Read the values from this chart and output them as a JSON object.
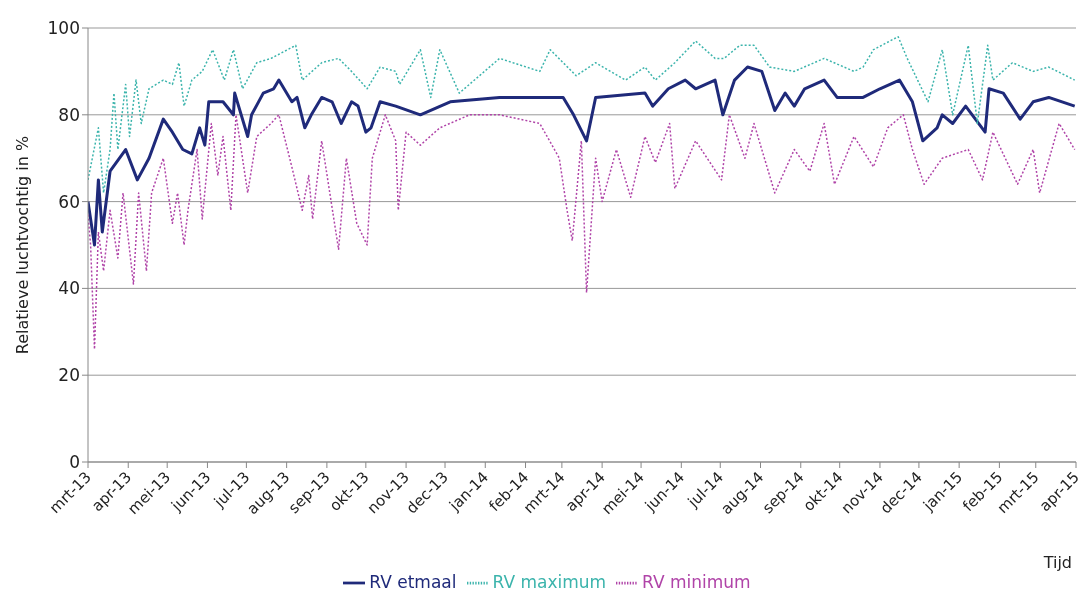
{
  "chart_data": {
    "type": "line",
    "xlabel": "Tijd",
    "ylabel": "Relatieve luchtvochtig in %",
    "xlim": [
      "2013-03-01",
      "2015-04-01"
    ],
    "xticks": [
      {
        "value": "2013-03-01",
        "label": "mrt-13"
      },
      {
        "value": "2013-04-01",
        "label": "apr-13"
      },
      {
        "value": "2013-05-01",
        "label": "mei-13"
      },
      {
        "value": "2013-06-01",
        "label": "jun-13"
      },
      {
        "value": "2013-07-01",
        "label": "jul-13"
      },
      {
        "value": "2013-08-01",
        "label": "aug-13"
      },
      {
        "value": "2013-09-01",
        "label": "sep-13"
      },
      {
        "value": "2013-10-01",
        "label": "okt-13"
      },
      {
        "value": "2013-11-01",
        "label": "nov-13"
      },
      {
        "value": "2013-12-01",
        "label": "dec-13"
      },
      {
        "value": "2014-01-01",
        "label": "jan-14"
      },
      {
        "value": "2014-02-01",
        "label": "feb-14"
      },
      {
        "value": "2014-03-01",
        "label": "mrt-14"
      },
      {
        "value": "2014-04-01",
        "label": "apr-14"
      },
      {
        "value": "2014-05-01",
        "label": "mei-14"
      },
      {
        "value": "2014-06-01",
        "label": "jun-14"
      },
      {
        "value": "2014-07-01",
        "label": "jul-14"
      },
      {
        "value": "2014-08-01",
        "label": "aug-14"
      },
      {
        "value": "2014-09-01",
        "label": "sep-14"
      },
      {
        "value": "2014-10-01",
        "label": "okt-14"
      },
      {
        "value": "2014-11-01",
        "label": "nov-14"
      },
      {
        "value": "2014-12-01",
        "label": "dec-14"
      },
      {
        "value": "2015-01-01",
        "label": "jan-15"
      },
      {
        "value": "2015-02-01",
        "label": "feb-15"
      },
      {
        "value": "2015-03-01",
        "label": "mrt-15"
      },
      {
        "value": "2015-04-01",
        "label": "apr-15"
      }
    ],
    "ylim": [
      0,
      100
    ],
    "yticks": [
      0,
      20,
      40,
      60,
      80,
      100
    ],
    "grid": "y",
    "legend": "bottom",
    "marker": "none",
    "series": [
      {
        "name": "RV etmaal",
        "color": "#1f2a7a",
        "line_style": "solid",
        "x": [
          "2013-03-01",
          "2013-03-06",
          "2013-03-09",
          "2013-03-12",
          "2013-03-18",
          "2013-03-30",
          "2013-04-08",
          "2013-04-17",
          "2013-04-28",
          "2013-05-05",
          "2013-05-13",
          "2013-05-20",
          "2013-05-26",
          "2013-05-30",
          "2013-06-02",
          "2013-06-13",
          "2013-06-21",
          "2013-06-22",
          "2013-07-02",
          "2013-07-05",
          "2013-07-14",
          "2013-07-22",
          "2013-07-26",
          "2013-08-05",
          "2013-08-09",
          "2013-08-15",
          "2013-08-20",
          "2013-08-28",
          "2013-09-05",
          "2013-09-12",
          "2013-09-20",
          "2013-09-25",
          "2013-10-01",
          "2013-10-05",
          "2013-10-12",
          "2013-10-24",
          "2013-11-12",
          "2013-12-05",
          "2014-01-12",
          "2014-02-12",
          "2014-03-02",
          "2014-03-10",
          "2014-03-20",
          "2014-03-27",
          "2014-05-04",
          "2014-05-10",
          "2014-05-22",
          "2014-06-04",
          "2014-06-12",
          "2014-06-27",
          "2014-07-03",
          "2014-07-12",
          "2014-07-22",
          "2014-08-02",
          "2014-08-12",
          "2014-08-20",
          "2014-08-27",
          "2014-09-04",
          "2014-09-19",
          "2014-09-29",
          "2014-10-19",
          "2014-11-01",
          "2014-11-16",
          "2014-11-26",
          "2014-12-04",
          "2014-12-15",
          "2014-12-19",
          "2014-12-27",
          "2015-01-06",
          "2015-01-21",
          "2015-01-24",
          "2015-02-04",
          "2015-02-17",
          "2015-02-27",
          "2015-03-11",
          "2015-03-31"
        ],
        "values": [
          60,
          50,
          65,
          53,
          67,
          72,
          65,
          70,
          79,
          76,
          72,
          71,
          77,
          73,
          83,
          83,
          80,
          85,
          75,
          80,
          85,
          86,
          88,
          83,
          84,
          77,
          80,
          84,
          83,
          78,
          83,
          82,
          76,
          77,
          83,
          82,
          80,
          83,
          84,
          84,
          84,
          80,
          74,
          84,
          85,
          82,
          86,
          88,
          86,
          88,
          80,
          88,
          91,
          90,
          81,
          85,
          82,
          86,
          88,
          84,
          84,
          86,
          88,
          83,
          74,
          77,
          80,
          78,
          82,
          76,
          86,
          85,
          79,
          83,
          84,
          82
        ]
      },
      {
        "name": "RV maximum",
        "color": "#3cb4ac",
        "line_style": "dotted",
        "x": [
          "2013-03-01",
          "2013-03-09",
          "2013-03-13",
          "2013-03-18",
          "2013-03-21",
          "2013-03-24",
          "2013-03-30",
          "2013-04-02",
          "2013-04-07",
          "2013-04-11",
          "2013-04-17",
          "2013-04-28",
          "2013-05-05",
          "2013-05-10",
          "2013-05-14",
          "2013-05-20",
          "2013-05-28",
          "2013-06-05",
          "2013-06-14",
          "2013-06-21",
          "2013-06-28",
          "2013-07-09",
          "2013-07-20",
          "2013-08-08",
          "2013-08-13",
          "2013-08-28",
          "2013-09-10",
          "2013-09-20",
          "2013-10-02",
          "2013-10-12",
          "2013-10-24",
          "2013-10-27",
          "2013-11-12",
          "2013-11-20",
          "2013-11-27",
          "2013-12-12",
          "2014-01-12",
          "2014-02-12",
          "2014-02-20",
          "2014-03-12",
          "2014-03-27",
          "2014-04-19",
          "2014-05-04",
          "2014-05-12",
          "2014-05-27",
          "2014-06-12",
          "2014-06-27",
          "2014-07-04",
          "2014-07-16",
          "2014-07-27",
          "2014-08-08",
          "2014-08-27",
          "2014-09-19",
          "2014-10-12",
          "2014-10-19",
          "2014-10-27",
          "2014-11-15",
          "2014-11-22",
          "2014-11-30",
          "2014-12-08",
          "2014-12-19",
          "2014-12-27",
          "2015-01-08",
          "2015-01-15",
          "2015-01-23",
          "2015-01-27",
          "2015-02-11",
          "2015-02-27",
          "2015-03-11",
          "2015-03-31"
        ],
        "values": [
          65,
          77,
          62,
          72,
          85,
          72,
          87,
          75,
          88,
          78,
          86,
          88,
          87,
          92,
          82,
          88,
          90,
          95,
          88,
          95,
          86,
          92,
          93,
          96,
          88,
          92,
          93,
          90,
          86,
          91,
          90,
          87,
          95,
          84,
          95,
          85,
          93,
          90,
          95,
          89,
          92,
          88,
          91,
          88,
          92,
          97,
          93,
          93,
          96,
          96,
          91,
          90,
          93,
          90,
          91,
          95,
          98,
          93,
          88,
          83,
          95,
          80,
          96,
          78,
          96,
          88,
          92,
          90,
          91,
          88
        ]
      },
      {
        "name": "RV minimum",
        "color": "#b044a8",
        "line_style": "dotted",
        "x": [
          "2013-03-01",
          "2013-03-03",
          "2013-03-06",
          "2013-03-09",
          "2013-03-13",
          "2013-03-18",
          "2013-03-24",
          "2013-03-28",
          "2013-04-05",
          "2013-04-09",
          "2013-04-15",
          "2013-04-19",
          "2013-04-28",
          "2013-05-05",
          "2013-05-09",
          "2013-05-14",
          "2013-05-17",
          "2013-05-24",
          "2013-05-28",
          "2013-06-04",
          "2013-06-09",
          "2013-06-13",
          "2013-06-19",
          "2013-06-23",
          "2013-07-02",
          "2013-07-09",
          "2013-07-20",
          "2013-07-26",
          "2013-08-05",
          "2013-08-13",
          "2013-08-18",
          "2013-08-21",
          "2013-08-28",
          "2013-09-10",
          "2013-09-16",
          "2013-09-24",
          "2013-10-02",
          "2013-10-06",
          "2013-10-16",
          "2013-10-24",
          "2013-10-26",
          "2013-11-01",
          "2013-11-12",
          "2013-11-27",
          "2013-12-20",
          "2014-01-12",
          "2014-02-12",
          "2014-02-27",
          "2014-03-05",
          "2014-03-09",
          "2014-03-16",
          "2014-03-20",
          "2014-03-27",
          "2014-04-01",
          "2014-04-12",
          "2014-04-23",
          "2014-05-04",
          "2014-05-12",
          "2014-05-23",
          "2014-05-27",
          "2014-06-12",
          "2014-07-02",
          "2014-07-08",
          "2014-07-20",
          "2014-07-27",
          "2014-08-12",
          "2014-08-27",
          "2014-09-08",
          "2014-09-19",
          "2014-09-27",
          "2014-10-12",
          "2014-10-27",
          "2014-11-07",
          "2014-11-19",
          "2014-11-26",
          "2014-12-05",
          "2014-12-19",
          "2015-01-08",
          "2015-01-19",
          "2015-01-27",
          "2015-02-15",
          "2015-02-27",
          "2015-03-04",
          "2015-03-19",
          "2015-03-31"
        ],
        "values": [
          57,
          50,
          26,
          53,
          44,
          58,
          47,
          62,
          41,
          62,
          44,
          62,
          70,
          55,
          62,
          50,
          58,
          72,
          56,
          78,
          66,
          75,
          58,
          80,
          62,
          75,
          78,
          80,
          68,
          58,
          66,
          56,
          74,
          49,
          70,
          55,
          50,
          70,
          80,
          74,
          58,
          76,
          73,
          77,
          80,
          80,
          78,
          70,
          58,
          51,
          74,
          39,
          70,
          60,
          72,
          61,
          75,
          69,
          78,
          63,
          74,
          65,
          80,
          70,
          78,
          62,
          72,
          67,
          78,
          64,
          75,
          68,
          77,
          80,
          72,
          64,
          70,
          72,
          65,
          76,
          64,
          72,
          62,
          78,
          72
        ]
      }
    ]
  }
}
